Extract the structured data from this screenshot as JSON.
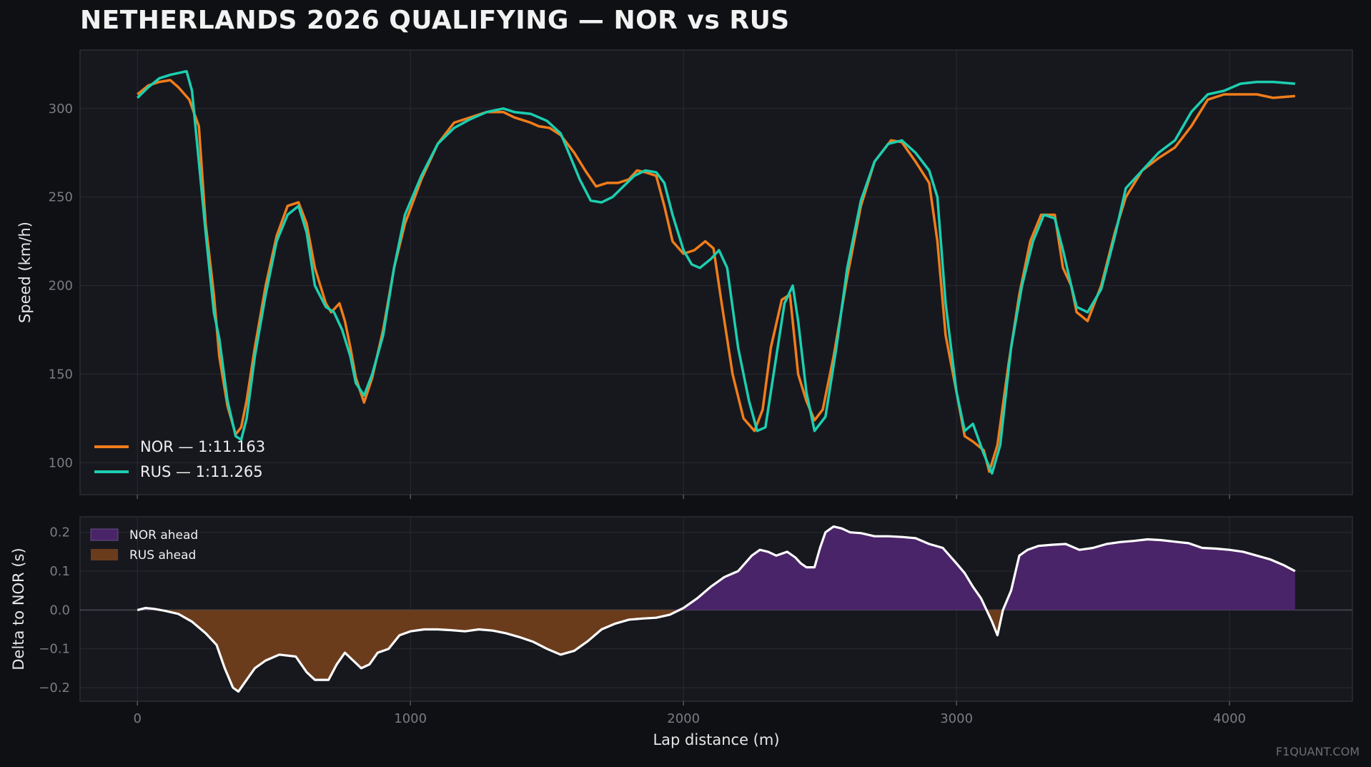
{
  "title": "NETHERLANDS 2026 QUALIFYING — NOR vs RUS",
  "watermark": "F1QUANT.COM",
  "colors": {
    "background": "#0f1013",
    "panel": "#17181e",
    "grid": "#2a2b31",
    "nor": "#f07d1a",
    "rus": "#1ccfb0",
    "nor_ahead_fill": "#4a2468",
    "rus_ahead_fill": "#6b3c1c",
    "delta_line": "#ffffff"
  },
  "chart_data": [
    {
      "type": "line",
      "xlabel": "",
      "ylabel": "Speed (km/h)",
      "xlim": [
        -210,
        4450
      ],
      "ylim": [
        82,
        333
      ],
      "yticks": [
        100,
        150,
        200,
        250,
        300
      ],
      "grid": true,
      "legend_position": "lower-left",
      "series": [
        {
          "name": "NOR — 1:11.163",
          "x": [
            0,
            40,
            80,
            120,
            150,
            190,
            225,
            250,
            280,
            300,
            330,
            360,
            380,
            400,
            430,
            470,
            510,
            550,
            590,
            620,
            650,
            690,
            710,
            740,
            760,
            780,
            800,
            830,
            860,
            900,
            940,
            980,
            1040,
            1100,
            1160,
            1220,
            1280,
            1340,
            1380,
            1440,
            1470,
            1510,
            1550,
            1600,
            1640,
            1680,
            1720,
            1760,
            1800,
            1830,
            1860,
            1900,
            1930,
            1960,
            2000,
            2040,
            2080,
            2110,
            2140,
            2180,
            2220,
            2260,
            2290,
            2320,
            2360,
            2390,
            2420,
            2450,
            2480,
            2510,
            2550,
            2600,
            2650,
            2700,
            2760,
            2800,
            2850,
            2900,
            2930,
            2960,
            3000,
            3030,
            3060,
            3100,
            3120,
            3150,
            3190,
            3230,
            3270,
            3310,
            3360,
            3390,
            3420,
            3440,
            3480,
            3530,
            3580,
            3620,
            3680,
            3740,
            3800,
            3860,
            3920,
            3980,
            4040,
            4100,
            4160,
            4240
          ],
          "y": [
            308,
            313,
            315,
            316,
            312,
            305,
            290,
            235,
            195,
            160,
            132,
            116,
            120,
            135,
            165,
            200,
            228,
            245,
            247,
            235,
            210,
            190,
            185,
            190,
            180,
            165,
            148,
            134,
            148,
            175,
            210,
            235,
            260,
            280,
            292,
            295,
            298,
            298,
            295,
            292,
            290,
            289,
            285,
            275,
            265,
            256,
            258,
            258,
            260,
            265,
            264,
            262,
            245,
            225,
            218,
            220,
            225,
            221,
            190,
            150,
            125,
            118,
            130,
            165,
            192,
            195,
            150,
            135,
            124,
            130,
            160,
            205,
            245,
            270,
            282,
            281,
            270,
            258,
            225,
            172,
            140,
            115,
            112,
            107,
            95,
            110,
            155,
            195,
            225,
            240,
            240,
            210,
            200,
            185,
            180,
            200,
            230,
            250,
            265,
            272,
            278,
            290,
            305,
            308,
            308,
            308,
            306,
            307
          ]
        },
        {
          "name": "RUS — 1:11.265",
          "x": [
            0,
            40,
            80,
            120,
            150,
            180,
            200,
            225,
            250,
            280,
            300,
            330,
            360,
            380,
            400,
            430,
            470,
            510,
            550,
            590,
            620,
            650,
            690,
            720,
            750,
            780,
            800,
            830,
            860,
            900,
            940,
            980,
            1040,
            1100,
            1160,
            1220,
            1280,
            1340,
            1380,
            1440,
            1500,
            1550,
            1580,
            1620,
            1660,
            1700,
            1740,
            1780,
            1820,
            1860,
            1900,
            1930,
            1960,
            2000,
            2030,
            2060,
            2100,
            2130,
            2160,
            2200,
            2240,
            2270,
            2300,
            2330,
            2370,
            2400,
            2420,
            2450,
            2480,
            2520,
            2560,
            2600,
            2650,
            2700,
            2750,
            2800,
            2850,
            2900,
            2930,
            2960,
            3000,
            3030,
            3060,
            3100,
            3130,
            3160,
            3200,
            3240,
            3280,
            3320,
            3360,
            3390,
            3420,
            3440,
            3480,
            3530,
            3580,
            3620,
            3680,
            3740,
            3800,
            3860,
            3920,
            3980,
            4040,
            4100,
            4160,
            4240
          ],
          "y": [
            306,
            312,
            317,
            319,
            320,
            321,
            310,
            270,
            230,
            185,
            170,
            135,
            115,
            113,
            125,
            160,
            195,
            225,
            240,
            245,
            230,
            200,
            188,
            185,
            175,
            160,
            145,
            138,
            150,
            172,
            210,
            240,
            262,
            280,
            289,
            294,
            298,
            300,
            298,
            297,
            293,
            286,
            275,
            260,
            248,
            247,
            250,
            256,
            262,
            265,
            264,
            258,
            240,
            220,
            212,
            210,
            215,
            220,
            210,
            165,
            135,
            118,
            120,
            150,
            190,
            200,
            180,
            140,
            118,
            126,
            165,
            210,
            248,
            270,
            280,
            282,
            275,
            265,
            250,
            190,
            140,
            118,
            122,
            105,
            94,
            110,
            165,
            200,
            225,
            240,
            238,
            220,
            200,
            188,
            185,
            198,
            228,
            255,
            265,
            275,
            282,
            298,
            308,
            310,
            314,
            315,
            315,
            314
          ]
        }
      ]
    },
    {
      "type": "area",
      "xlabel": "Lap distance (m)",
      "ylabel": "Delta to NOR (s)",
      "xlim": [
        -210,
        4450
      ],
      "ylim": [
        -0.235,
        0.24
      ],
      "xticks": [
        0,
        1000,
        2000,
        3000,
        4000
      ],
      "yticks": [
        -0.2,
        -0.1,
        0.0,
        0.1,
        0.2
      ],
      "grid": true,
      "legend_position": "upper-left",
      "legend": [
        "NOR ahead",
        "RUS ahead"
      ],
      "series": [
        {
          "name": "",
          "x": [
            0,
            30,
            60,
            100,
            150,
            200,
            250,
            290,
            320,
            350,
            370,
            400,
            430,
            470,
            520,
            580,
            620,
            650,
            680,
            700,
            730,
            760,
            790,
            820,
            850,
            880,
            920,
            960,
            1000,
            1050,
            1100,
            1150,
            1200,
            1250,
            1300,
            1350,
            1400,
            1450,
            1500,
            1550,
            1600,
            1650,
            1700,
            1750,
            1800,
            1850,
            1900,
            1950,
            2000,
            2050,
            2100,
            2150,
            2200,
            2250,
            2280,
            2310,
            2340,
            2380,
            2410,
            2430,
            2450,
            2480,
            2500,
            2520,
            2550,
            2580,
            2610,
            2650,
            2700,
            2750,
            2800,
            2850,
            2900,
            2950,
            3000,
            3030,
            3060,
            3090,
            3110,
            3130,
            3150,
            3170,
            3200,
            3230,
            3260,
            3300,
            3350,
            3400,
            3450,
            3500,
            3550,
            3600,
            3650,
            3700,
            3750,
            3800,
            3850,
            3900,
            3950,
            4000,
            4050,
            4100,
            4150,
            4200,
            4240
          ],
          "y": [
            0.0,
            0.005,
            0.003,
            -0.002,
            -0.01,
            -0.03,
            -0.06,
            -0.09,
            -0.15,
            -0.2,
            -0.21,
            -0.18,
            -0.15,
            -0.13,
            -0.115,
            -0.12,
            -0.16,
            -0.18,
            -0.18,
            -0.18,
            -0.14,
            -0.11,
            -0.13,
            -0.15,
            -0.14,
            -0.11,
            -0.1,
            -0.065,
            -0.055,
            -0.05,
            -0.05,
            -0.052,
            -0.055,
            -0.05,
            -0.053,
            -0.06,
            -0.07,
            -0.082,
            -0.1,
            -0.115,
            -0.105,
            -0.08,
            -0.05,
            -0.035,
            -0.025,
            -0.022,
            -0.02,
            -0.012,
            0.005,
            0.03,
            0.06,
            0.085,
            0.1,
            0.14,
            0.155,
            0.15,
            0.14,
            0.15,
            0.135,
            0.12,
            0.11,
            0.11,
            0.16,
            0.2,
            0.215,
            0.21,
            0.2,
            0.198,
            0.19,
            0.19,
            0.188,
            0.185,
            0.17,
            0.16,
            0.12,
            0.095,
            0.06,
            0.03,
            0.0,
            -0.03,
            -0.065,
            0.0,
            0.05,
            0.14,
            0.155,
            0.165,
            0.168,
            0.17,
            0.155,
            0.16,
            0.17,
            0.175,
            0.178,
            0.182,
            0.18,
            0.176,
            0.172,
            0.16,
            0.158,
            0.155,
            0.15,
            0.14,
            0.13,
            0.115,
            0.1
          ]
        }
      ]
    }
  ]
}
